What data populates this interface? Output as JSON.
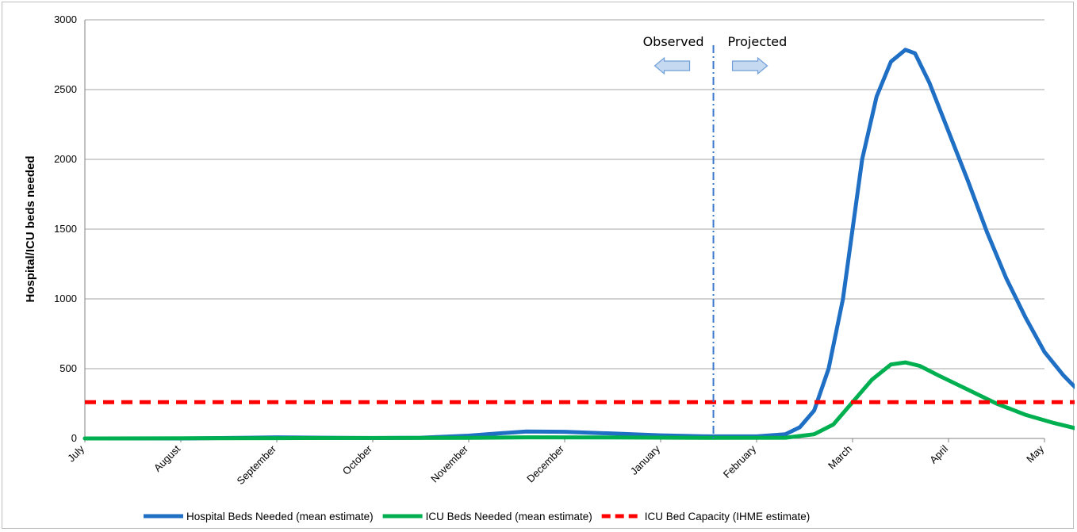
{
  "chart_data": {
    "type": "line",
    "ylabel": "Hospital/ICU beds needed",
    "xlabel": "",
    "ylim": [
      0,
      3000
    ],
    "yticks": [
      0,
      500,
      1000,
      1500,
      2000,
      2500,
      3000
    ],
    "x_categories": [
      "July",
      "August",
      "September",
      "October",
      "November",
      "December",
      "January",
      "February",
      "March",
      "April",
      "May"
    ],
    "grid": true,
    "legend_position": "bottom",
    "annotations": {
      "observed": "Observed",
      "projected": "Projected",
      "divider_x": 6.55
    },
    "series": [
      {
        "name": "Hospital Beds Needed (mean estimate)",
        "color": "#1f6fc5",
        "style": "solid",
        "points": [
          [
            0,
            0
          ],
          [
            1,
            0
          ],
          [
            1.7,
            5
          ],
          [
            2,
            8
          ],
          [
            2.5,
            5
          ],
          [
            3,
            3
          ],
          [
            3.5,
            5
          ],
          [
            4,
            20
          ],
          [
            4.3,
            35
          ],
          [
            4.6,
            50
          ],
          [
            5,
            48
          ],
          [
            5.5,
            35
          ],
          [
            6,
            22
          ],
          [
            6.5,
            15
          ],
          [
            7,
            15
          ],
          [
            7.3,
            30
          ],
          [
            7.45,
            80
          ],
          [
            7.6,
            200
          ],
          [
            7.75,
            500
          ],
          [
            7.9,
            1000
          ],
          [
            8.0,
            1500
          ],
          [
            8.1,
            2000
          ],
          [
            8.25,
            2450
          ],
          [
            8.4,
            2700
          ],
          [
            8.55,
            2785
          ],
          [
            8.65,
            2760
          ],
          [
            8.8,
            2550
          ],
          [
            9.0,
            2200
          ],
          [
            9.2,
            1850
          ],
          [
            9.4,
            1480
          ],
          [
            9.6,
            1150
          ],
          [
            9.8,
            870
          ],
          [
            10.0,
            620
          ],
          [
            10.2,
            450
          ],
          [
            10.3,
            380
          ],
          [
            10.4,
            320
          ]
        ]
      },
      {
        "name": "ICU Beds Needed (mean estimate)",
        "color": "#00b050",
        "style": "solid",
        "points": [
          [
            0,
            0
          ],
          [
            2,
            2
          ],
          [
            4,
            4
          ],
          [
            4.6,
            8
          ],
          [
            5.5,
            7
          ],
          [
            6.5,
            4
          ],
          [
            7.3,
            5
          ],
          [
            7.6,
            30
          ],
          [
            7.8,
            100
          ],
          [
            8.0,
            260
          ],
          [
            8.2,
            420
          ],
          [
            8.4,
            530
          ],
          [
            8.55,
            545
          ],
          [
            8.7,
            520
          ],
          [
            8.9,
            450
          ],
          [
            9.2,
            350
          ],
          [
            9.5,
            250
          ],
          [
            9.8,
            170
          ],
          [
            10.1,
            110
          ],
          [
            10.4,
            60
          ]
        ]
      },
      {
        "name": "ICU Bed Capacity (IHME estimate)",
        "color": "#ff0000",
        "style": "dashed",
        "points": [
          [
            0,
            260
          ],
          [
            10.4,
            260
          ]
        ]
      }
    ]
  }
}
